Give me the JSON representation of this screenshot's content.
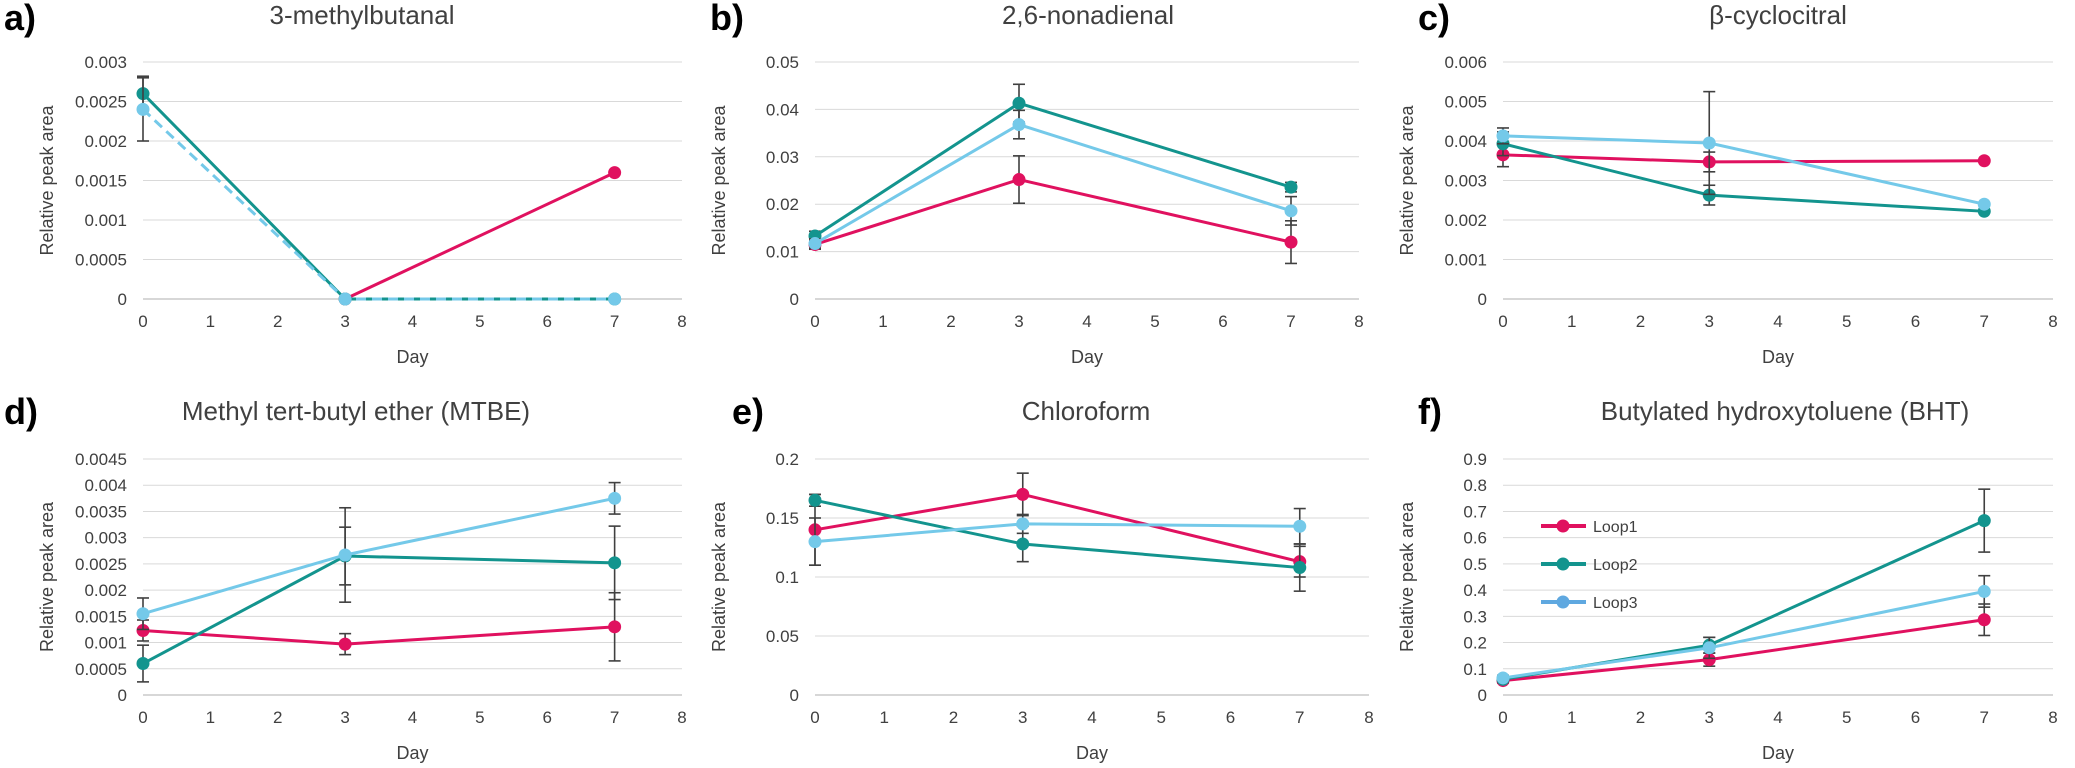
{
  "figure": {
    "series_colors": {
      "Loop1": "#e0115f",
      "Loop2": "#13948e",
      "Loop3": "#74c9e9"
    },
    "legend_line_colors": {
      "Loop1": "#e0115f",
      "Loop2": "#13948e",
      "Loop3": "#5fa8e0"
    }
  },
  "chart_data": [
    {
      "type": "line",
      "panel": "a)",
      "title": "3-methylbutanal",
      "xlabel": "Day",
      "ylabel": "Relative peak area",
      "xlim": [
        0,
        8
      ],
      "ylim": [
        0,
        0.003
      ],
      "yticks": [
        "0",
        "0.0005",
        "0.001",
        "0.0015",
        "0.002",
        "0.0025",
        "0.003"
      ],
      "xticks": [
        "0",
        "1",
        "2",
        "3",
        "4",
        "5",
        "6",
        "7",
        "8"
      ],
      "series": [
        {
          "name": "Loop1",
          "x": [
            3,
            7
          ],
          "values": [
            0,
            0.0016
          ],
          "errors": [
            0,
            0
          ]
        },
        {
          "name": "Loop2",
          "x": [
            0,
            3,
            7
          ],
          "values": [
            0.0026,
            0,
            0
          ],
          "errors": [
            0.00022,
            0,
            0
          ]
        },
        {
          "name": "Loop3",
          "x": [
            0,
            3,
            7
          ],
          "values": [
            0.0024,
            0,
            0
          ],
          "errors": [
            0.0004,
            0,
            0
          ],
          "dashed": true
        }
      ]
    },
    {
      "type": "line",
      "panel": "b)",
      "title": "2,6-nonadienal",
      "xlabel": "Day",
      "ylabel": "Relative peak area",
      "xlim": [
        0,
        8
      ],
      "ylim": [
        0,
        0.05
      ],
      "yticks": [
        "0",
        "0.01",
        "0.02",
        "0.03",
        "0.04",
        "0.05"
      ],
      "xticks": [
        "0",
        "1",
        "2",
        "3",
        "4",
        "5",
        "6",
        "7",
        "8"
      ],
      "series": [
        {
          "name": "Loop1",
          "x": [
            0,
            3,
            7
          ],
          "values": [
            0.0115,
            0.0252,
            0.012
          ],
          "errors": [
            0.001,
            0.005,
            0.0045
          ]
        },
        {
          "name": "Loop2",
          "x": [
            0,
            3,
            7
          ],
          "values": [
            0.0133,
            0.0413,
            0.0236
          ],
          "errors": [
            0.001,
            0.004,
            0.001
          ]
        },
        {
          "name": "Loop3",
          "x": [
            0,
            3,
            7
          ],
          "values": [
            0.0117,
            0.0368,
            0.0186
          ],
          "errors": [
            0.001,
            0.003,
            0.003
          ]
        }
      ]
    },
    {
      "type": "line",
      "panel": "c)",
      "title": "β-cyclocitral",
      "xlabel": "Day",
      "ylabel": "Relative peak area",
      "xlim": [
        0,
        8
      ],
      "ylim": [
        0,
        0.006
      ],
      "yticks": [
        "0",
        "0.001",
        "0.002",
        "0.003",
        "0.004",
        "0.005",
        "0.006"
      ],
      "xticks": [
        "0",
        "1",
        "2",
        "3",
        "4",
        "5",
        "6",
        "7",
        "8"
      ],
      "series": [
        {
          "name": "Loop1",
          "x": [
            0,
            3,
            7
          ],
          "values": [
            0.00365,
            0.00347,
            0.0035
          ],
          "errors": [
            0.0003,
            0.00025,
            0
          ]
        },
        {
          "name": "Loop2",
          "x": [
            0,
            3,
            7
          ],
          "values": [
            0.00393,
            0.00263,
            0.00222
          ],
          "errors": [
            0.0003,
            0.00025,
            0
          ]
        },
        {
          "name": "Loop3",
          "x": [
            0,
            3,
            7
          ],
          "values": [
            0.00413,
            0.00395,
            0.0024
          ],
          "errors": [
            0.0002,
            0.0013,
            0
          ]
        }
      ]
    },
    {
      "type": "line",
      "panel": "d)",
      "title": "Methyl tert-butyl ether (MTBE)",
      "xlabel": "Day",
      "ylabel": "Relative peak area",
      "xlim": [
        0,
        8
      ],
      "ylim": [
        0,
        0.0045
      ],
      "yticks": [
        "0",
        "0.0005",
        "0.001",
        "0.0015",
        "0.002",
        "0.0025",
        "0.003",
        "0.0035",
        "0.004",
        "0.0045"
      ],
      "xticks": [
        "0",
        "1",
        "2",
        "3",
        "4",
        "5",
        "6",
        "7",
        "8"
      ],
      "series": [
        {
          "name": "Loop1",
          "x": [
            0,
            3,
            7
          ],
          "values": [
            0.00123,
            0.00097,
            0.0013
          ],
          "errors": [
            0.0002,
            0.0002,
            0.00065
          ]
        },
        {
          "name": "Loop2",
          "x": [
            0,
            3,
            7
          ],
          "values": [
            0.0006,
            0.00265,
            0.00252
          ],
          "errors": [
            0.00035,
            0.00055,
            0.0007
          ]
        },
        {
          "name": "Loop3",
          "x": [
            0,
            3,
            7
          ],
          "values": [
            0.00155,
            0.00267,
            0.00375
          ],
          "errors": [
            0.0003,
            0.0009,
            0.0003
          ]
        }
      ]
    },
    {
      "type": "line",
      "panel": "e)",
      "title": "Chloroform",
      "xlabel": "Day",
      "ylabel": "Relative peak area",
      "xlim": [
        0,
        8
      ],
      "ylim": [
        0,
        0.2
      ],
      "yticks": [
        "0",
        "0.05",
        "0.1",
        "0.15",
        "0.2"
      ],
      "xticks": [
        "0",
        "1",
        "2",
        "3",
        "4",
        "5",
        "6",
        "7",
        "8"
      ],
      "series": [
        {
          "name": "Loop1",
          "x": [
            0,
            3,
            7
          ],
          "values": [
            0.14,
            0.17,
            0.113
          ],
          "errors": [
            0.03,
            0.018,
            0.013
          ]
        },
        {
          "name": "Loop2",
          "x": [
            0,
            3,
            7
          ],
          "values": [
            0.165,
            0.128,
            0.108
          ],
          "errors": [
            0.005,
            0.015,
            0.02
          ]
        },
        {
          "name": "Loop3",
          "x": [
            0,
            3,
            7
          ],
          "values": [
            0.13,
            0.145,
            0.143
          ],
          "errors": [
            0.02,
            0.008,
            0.015
          ]
        }
      ]
    },
    {
      "type": "line",
      "panel": "f)",
      "title": "Butylated hydroxytoluene (BHT)",
      "xlabel": "Day",
      "ylabel": "Relative peak area",
      "xlim": [
        0,
        8
      ],
      "ylim": [
        0,
        0.9
      ],
      "yticks": [
        "0",
        "0.1",
        "0.2",
        "0.3",
        "0.4",
        "0.5",
        "0.6",
        "0.7",
        "0.8",
        "0.9"
      ],
      "xticks": [
        "0",
        "1",
        "2",
        "3",
        "4",
        "5",
        "6",
        "7",
        "8"
      ],
      "legend": {
        "entries": [
          "Loop1",
          "Loop2",
          "Loop3"
        ],
        "location": "left"
      },
      "series": [
        {
          "name": "Loop1",
          "x": [
            0,
            3,
            7
          ],
          "values": [
            0.055,
            0.135,
            0.287
          ],
          "errors": [
            0.01,
            0.025,
            0.06
          ]
        },
        {
          "name": "Loop2",
          "x": [
            0,
            3,
            7
          ],
          "values": [
            0.06,
            0.19,
            0.665
          ],
          "errors": [
            0.01,
            0.03,
            0.12
          ]
        },
        {
          "name": "Loop3",
          "x": [
            0,
            3,
            7
          ],
          "values": [
            0.065,
            0.18,
            0.395
          ],
          "errors": [
            0.01,
            0.04,
            0.06
          ]
        }
      ]
    }
  ]
}
